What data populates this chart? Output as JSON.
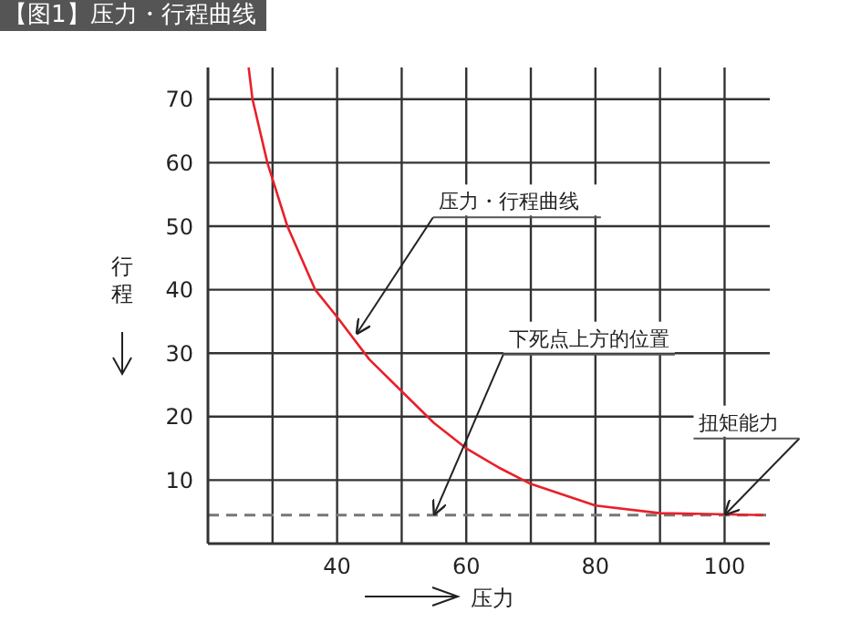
{
  "chart_data": {
    "type": "line",
    "title": "【图1】压力・行程曲线",
    "xlabel": "压力",
    "ylabel": "行程",
    "xlim": [
      20,
      107
    ],
    "ylim": [
      0,
      75
    ],
    "xticks": [
      {
        "value": 30,
        "label": null
      },
      40,
      {
        "value": 50,
        "label": null
      },
      60,
      {
        "value": 70,
        "label": null
      },
      80,
      {
        "value": 90,
        "label": null
      },
      100
    ],
    "yticks": [
      10,
      20,
      30,
      40,
      50,
      60,
      70
    ],
    "grid": true,
    "marker": "none",
    "line_style": "solid",
    "series": [
      {
        "color": "#e8202a",
        "x": [
          26.3,
          26.9,
          29.2,
          32.3,
          36.6,
          40,
          45,
          50,
          55,
          60,
          65,
          70,
          80,
          90,
          106
        ],
        "values": [
          75,
          70,
          60,
          50,
          40,
          35.7,
          29,
          24,
          19,
          15,
          12,
          9.4,
          6,
          4.8,
          4.5
        ]
      }
    ],
    "ref_lines": [
      {
        "axis": "y",
        "value": 4.5,
        "color": "#777777",
        "line_style": "dashed"
      }
    ],
    "annotations": [
      {
        "text": "压力・行程曲线",
        "x": 43,
        "y": 33
      },
      {
        "text": "下死点上方的位置",
        "x": 55,
        "y": 4.5
      },
      {
        "text": "扭矩能力",
        "x": 100,
        "y": 4.5
      }
    ]
  }
}
